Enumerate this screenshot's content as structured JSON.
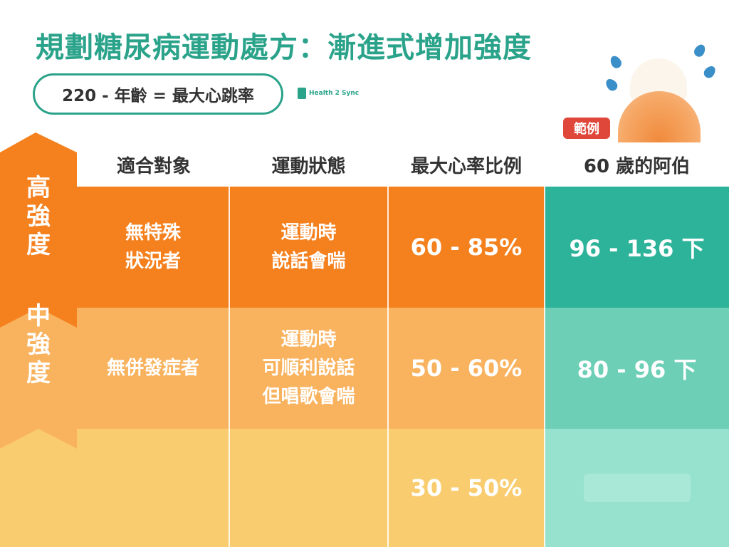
{
  "title": "規劃糖尿病運動處方：漸進式增加強度",
  "formula": "220 - 年齡 = 最大心跳率",
  "brand": "Health 2 Sync",
  "example_badge": "範例",
  "headers": {
    "target": "適合對象",
    "state": "運動狀態",
    "ratio": "最大心率比例",
    "example": "60 歲的阿伯"
  },
  "levels": {
    "high": [
      "高",
      "強",
      "度"
    ],
    "medium": [
      "中",
      "強",
      "度"
    ]
  },
  "rows": [
    {
      "target": [
        "無特殊",
        "狀況者"
      ],
      "state": [
        "運動時",
        "說話會喘"
      ],
      "ratio": "60 - 85%",
      "example": "96 - 136 下"
    },
    {
      "target": [
        "無併發症者"
      ],
      "state": [
        "運動時",
        "可順利說話",
        "但唱歌會喘"
      ],
      "ratio": "50 - 60%",
      "example": "80 - 96 下"
    },
    {
      "target": [],
      "state": [],
      "ratio": "30 - 50%",
      "example": ""
    }
  ],
  "colors": {
    "brand_green": "#2aa38a",
    "row1_orange": "#f5801e",
    "row2_orange": "#f9b35f",
    "row3_orange": "#f9cd6f",
    "row1_teal": "#2db39a",
    "row2_teal": "#6ccfb6",
    "row3_teal": "#96e2cf",
    "badge_red": "#e0473b",
    "drop_blue": "#3a8fc9"
  }
}
